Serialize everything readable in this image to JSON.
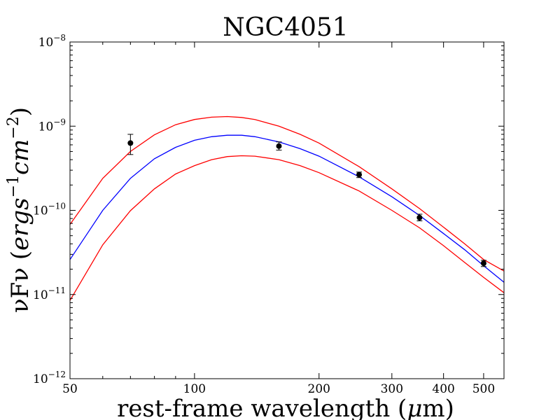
{
  "chart_data": {
    "type": "line",
    "title": "NGC4051",
    "xlabel_main": "rest-frame wavelength (",
    "xlabel_mu": "μ",
    "xlabel_unit": "m)",
    "ylabel_main": "νFν (",
    "ylabel_units": "ergs",
    "ylabel_exp1": "−1",
    "ylabel_units2": "cm",
    "ylabel_exp2": "−2",
    "ylabel_close": ")",
    "x_scale": "log",
    "y_scale": "log",
    "xlim": [
      50,
      560
    ],
    "ylim": [
      1e-12,
      1e-08
    ],
    "x_ticks": [
      {
        "value": 50,
        "label": "50"
      },
      {
        "value": 100,
        "label": "100"
      },
      {
        "value": 200,
        "label": "200"
      },
      {
        "value": 300,
        "label": "300"
      },
      {
        "value": 400,
        "label": "400"
      },
      {
        "value": 500,
        "label": "500"
      }
    ],
    "y_ticks": [
      {
        "value": 1e-12,
        "base": "10",
        "exp": "−12"
      },
      {
        "value": 1e-11,
        "base": "10",
        "exp": "−11"
      },
      {
        "value": 1e-10,
        "base": "10",
        "exp": "−10"
      },
      {
        "value": 1e-09,
        "base": "10",
        "exp": "−9"
      },
      {
        "value": 1e-08,
        "base": "10",
        "exp": "−8"
      }
    ],
    "series": [
      {
        "name": "upper bound",
        "color": "#ff0000",
        "x": [
          50,
          60,
          70,
          80,
          90,
          100,
          110,
          120,
          130,
          140,
          160,
          180,
          200,
          250,
          300,
          350,
          400,
          450,
          500,
          560
        ],
        "y": [
          6.8e-11,
          2.4e-10,
          5e-10,
          7.9e-10,
          1.04e-09,
          1.2e-09,
          1.28e-09,
          1.3e-09,
          1.27e-09,
          1.2e-09,
          1e-09,
          8e-10,
          6.3e-10,
          3.3e-10,
          1.8e-10,
          1.05e-10,
          6.3e-11,
          4e-11,
          2.6e-11,
          1.9e-11
        ]
      },
      {
        "name": "best fit",
        "color": "#0000ff",
        "x": [
          50,
          60,
          70,
          80,
          90,
          100,
          110,
          120,
          130,
          140,
          160,
          180,
          200,
          250,
          300,
          350,
          400,
          450,
          500,
          560
        ],
        "y": [
          2.6e-11,
          1e-10,
          2.4e-10,
          4.1e-10,
          5.6e-10,
          6.8e-10,
          7.5e-10,
          7.8e-10,
          7.8e-10,
          7.5e-10,
          6.5e-10,
          5.4e-10,
          4.4e-10,
          2.5e-10,
          1.45e-10,
          8.7e-11,
          5.3e-11,
          3.4e-11,
          2.2e-11,
          1.4e-11
        ]
      },
      {
        "name": "lower bound",
        "color": "#ff0000",
        "x": [
          50,
          60,
          70,
          80,
          90,
          100,
          110,
          120,
          130,
          140,
          160,
          180,
          200,
          250,
          300,
          350,
          400,
          450,
          500,
          560
        ],
        "y": [
          8.5e-12,
          3.9e-11,
          9.9e-11,
          1.8e-10,
          2.7e-10,
          3.4e-10,
          4e-10,
          4.35e-10,
          4.45e-10,
          4.4e-10,
          4e-10,
          3.4e-10,
          2.8e-10,
          1.7e-10,
          1e-10,
          6.2e-11,
          3.8e-11,
          2.4e-11,
          1.6e-11,
          1.05e-11
        ]
      }
    ],
    "points": [
      {
        "x": 70,
        "y": 6.3e-10,
        "yerr_low": 4.6e-10,
        "yerr_high": 8e-10
      },
      {
        "x": 160,
        "y": 5.8e-10,
        "yerr_low": 5.2e-10,
        "yerr_high": 6.5e-10
      },
      {
        "x": 250,
        "y": 2.65e-10,
        "yerr_low": 2.45e-10,
        "yerr_high": 2.85e-10
      },
      {
        "x": 350,
        "y": 8.2e-11,
        "yerr_low": 7.5e-11,
        "yerr_high": 9e-11
      },
      {
        "x": 500,
        "y": 2.35e-11,
        "yerr_low": 2.15e-11,
        "yerr_high": 2.55e-11
      }
    ]
  }
}
